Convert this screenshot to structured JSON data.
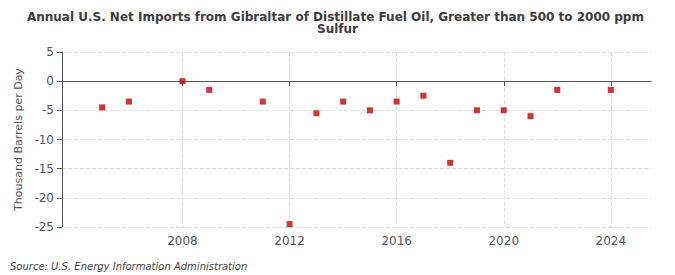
{
  "chart_data": {
    "type": "scatter",
    "title": "Annual U.S. Net Imports from Gibraltar of Distillate Fuel Oil, Greater than 500 to 2000 ppm Sulfur",
    "ylabel": "Thousand Barrels per Day",
    "annotations": [
      "Source: U.S. Energy Information Administration"
    ],
    "x": [
      2005,
      2006,
      2008,
      2009,
      2011,
      2012,
      2013,
      2014,
      2015,
      2016,
      2017,
      2018,
      2019,
      2020,
      2021,
      2022,
      2024
    ],
    "values": [
      -4.5,
      -3.5,
      0.0,
      -1.5,
      -3.5,
      -24.5,
      -5.5,
      -3.5,
      -5.0,
      -3.5,
      -2.5,
      -14.0,
      -5.0,
      -5.0,
      -6.0,
      -1.5,
      -1.5
    ],
    "color": "#cc0000",
    "marker": "square",
    "xlim": [
      2003.5,
      2025.5
    ],
    "xticks": [
      2008,
      2012,
      2016,
      2020,
      2024
    ],
    "ylim": [
      -25,
      5
    ],
    "yticks": [
      5,
      0,
      -5,
      -10,
      -15,
      -20,
      -25
    ],
    "grid": true
  }
}
